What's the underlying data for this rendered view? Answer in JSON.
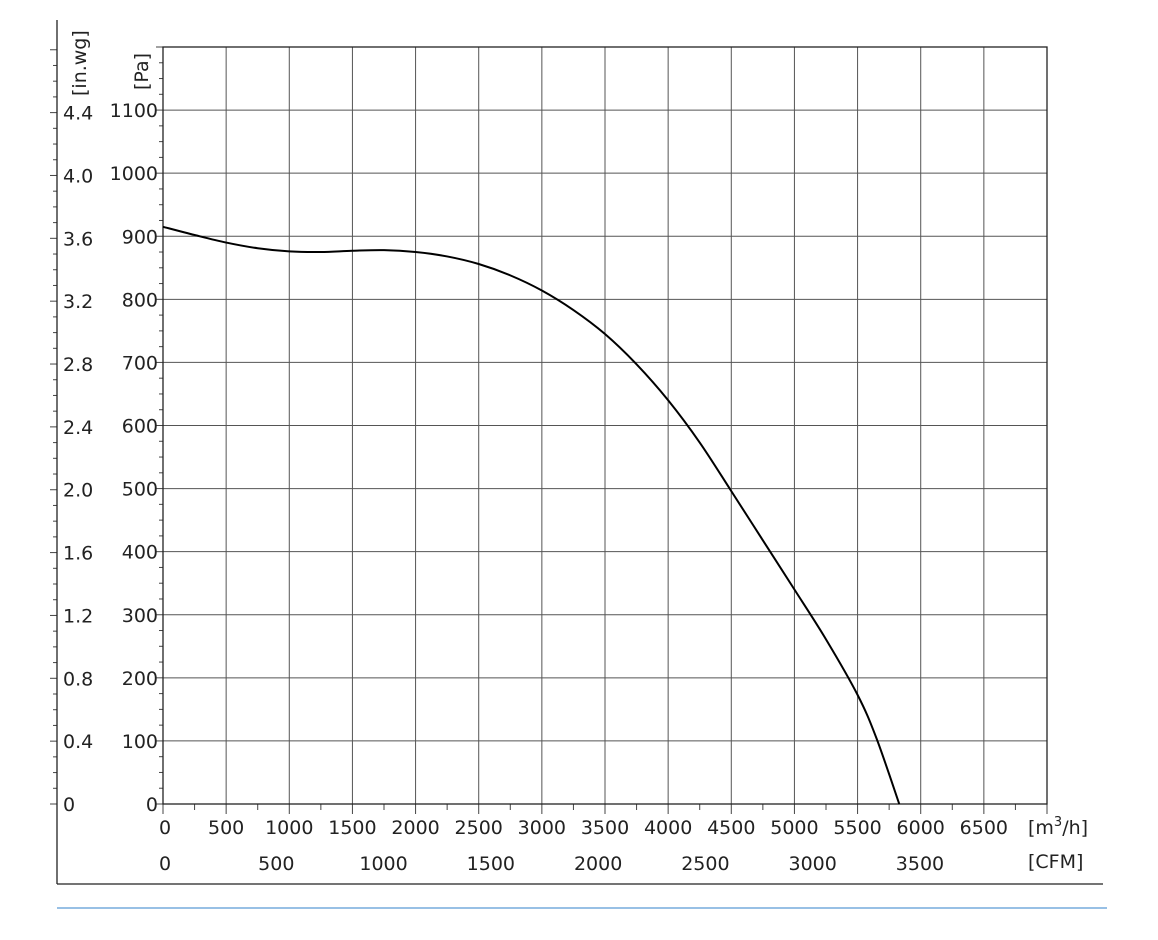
{
  "chart_data": {
    "type": "line",
    "title": "",
    "x_primary": {
      "unit_label": "[m³/h]",
      "unit_base": "[m",
      "unit_sup": "3",
      "unit_tail": "/h]",
      "range": [
        0,
        7000
      ],
      "ticks": [
        0,
        500,
        1000,
        1500,
        2000,
        2500,
        3000,
        3500,
        4000,
        4500,
        5000,
        5500,
        6000,
        6500
      ],
      "tick_labels": [
        "0",
        "500",
        "1000",
        "1500",
        "2000",
        "2500",
        "3000",
        "3500",
        "4000",
        "4500",
        "5000",
        "5500",
        "6000",
        "6500"
      ]
    },
    "x_secondary": {
      "unit_label": "[CFM]",
      "ticks": [
        0,
        500,
        1000,
        1500,
        2000,
        2500,
        3000,
        3500
      ],
      "tick_labels": [
        "0",
        "500",
        "1000",
        "1500",
        "2000",
        "2500",
        "3000",
        "3500"
      ]
    },
    "y_primary": {
      "unit_label": "[Pa]",
      "range": [
        0,
        1200
      ],
      "ticks": [
        0,
        100,
        200,
        300,
        400,
        500,
        600,
        700,
        800,
        900,
        1000,
        1100
      ],
      "tick_labels": [
        "0",
        "100",
        "200",
        "300",
        "400",
        "500",
        "600",
        "700",
        "800",
        "900",
        "1000",
        "1100"
      ]
    },
    "y_secondary": {
      "unit_label": "[in.wg]",
      "ticks": [
        0,
        0.4,
        0.8,
        1.2,
        1.6,
        2.0,
        2.4,
        2.8,
        3.2,
        3.6,
        4.0,
        4.4
      ],
      "tick_labels": [
        "0",
        "0.4",
        "0.8",
        "1.2",
        "1.6",
        "2.0",
        "2.4",
        "2.8",
        "3.2",
        "3.6",
        "4.0",
        "4.4"
      ]
    },
    "grid": true,
    "series": [
      {
        "points": [
          [
            0,
            915
          ],
          [
            250,
            902
          ],
          [
            500,
            890
          ],
          [
            750,
            881
          ],
          [
            1000,
            876
          ],
          [
            1250,
            875
          ],
          [
            1500,
            877
          ],
          [
            1750,
            878
          ],
          [
            2000,
            875
          ],
          [
            2250,
            868
          ],
          [
            2500,
            856
          ],
          [
            2750,
            838
          ],
          [
            3000,
            814
          ],
          [
            3250,
            783
          ],
          [
            3500,
            745
          ],
          [
            3750,
            697
          ],
          [
            4000,
            640
          ],
          [
            4250,
            573
          ],
          [
            4500,
            496
          ],
          [
            4750,
            418
          ],
          [
            5000,
            340
          ],
          [
            5250,
            261
          ],
          [
            5500,
            173
          ],
          [
            5650,
            104
          ],
          [
            5830,
            0
          ]
        ]
      }
    ]
  },
  "colors": {
    "curve": "#000000",
    "grid": "#555555",
    "frame": "#222222",
    "footer_line": "#5b9bd5"
  }
}
